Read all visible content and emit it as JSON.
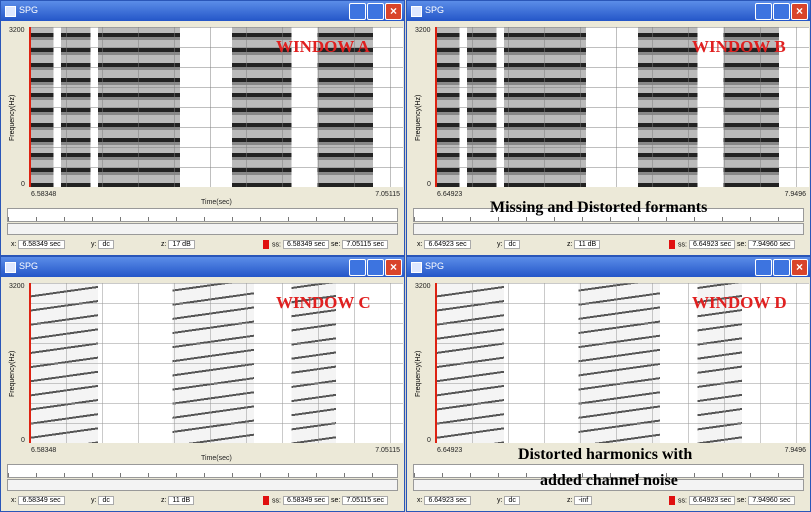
{
  "windows": [
    {
      "title": "SPG",
      "label": "WINDOW A",
      "y_top": "3200",
      "y_bottom": "0",
      "y_label": "Frequency(Hz)",
      "x_start": "6.58348",
      "x_end": "7.05115",
      "x_label": "Time(sec)",
      "status": [
        {
          "label": "x:",
          "value": "6.58349 sec"
        },
        {
          "label": "y:",
          "value": "dc"
        },
        {
          "label": "z:",
          "value": "17 dB"
        },
        {
          "label": "ss:",
          "value": "6.58349 sec"
        },
        {
          "label": "se:",
          "value": "7.05115 sec"
        }
      ]
    },
    {
      "title": "SPG",
      "label": "WINDOW B",
      "y_top": "3200",
      "y_bottom": "0",
      "y_label": "Frequency(Hz)",
      "x_start": "6.64923",
      "x_end": "7.9496",
      "status": [
        {
          "label": "x:",
          "value": "6.64923 sec"
        },
        {
          "label": "y:",
          "value": "dc"
        },
        {
          "label": "z:",
          "value": "11 dB"
        },
        {
          "label": "ss:",
          "value": "6.64923 sec"
        },
        {
          "label": "se:",
          "value": "7.94960 sec"
        }
      ]
    },
    {
      "title": "SPG",
      "label": "WINDOW C",
      "y_top": "3200",
      "y_bottom": "0",
      "y_label": "Frequency(Hz)",
      "x_start": "6.58348",
      "x_end": "7.05115",
      "x_label": "Time(sec)",
      "status": [
        {
          "label": "x:",
          "value": "6.58349 sec"
        },
        {
          "label": "y:",
          "value": "dc"
        },
        {
          "label": "z:",
          "value": "11 dB"
        },
        {
          "label": "ss:",
          "value": "6.58349 sec"
        },
        {
          "label": "se:",
          "value": "7.05115 sec"
        }
      ]
    },
    {
      "title": "SPG",
      "label": "WINDOW D",
      "y_top": "3200",
      "y_bottom": "0",
      "y_label": "Frequency(Hz)",
      "x_start": "6.64923",
      "x_end": "7.9496",
      "status": [
        {
          "label": "x:",
          "value": "6.64923 sec"
        },
        {
          "label": "y:",
          "value": "dc"
        },
        {
          "label": "z:",
          "value": "-inf"
        },
        {
          "label": "ss:",
          "value": "6.64923 sec"
        },
        {
          "label": "se:",
          "value": "7.94960 sec"
        }
      ]
    }
  ],
  "annotations": [
    {
      "lines": [
        "Missing and Distorted formants"
      ]
    },
    {
      "lines": [
        "Distorted harmonics with",
        "added channel noise"
      ]
    }
  ]
}
